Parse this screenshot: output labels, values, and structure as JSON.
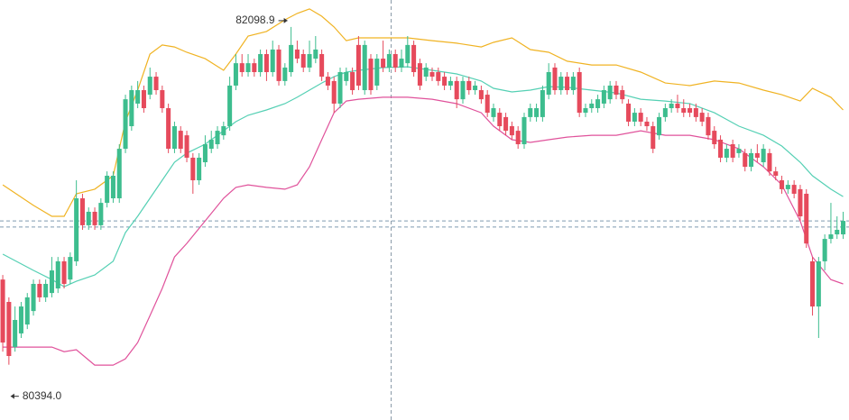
{
  "chart_data": {
    "type": "candlestick",
    "up_color": "#3dbd8e",
    "down_color": "#e64a5c",
    "xlim": [
      -0.45,
      137.95
    ],
    "ylim": [
      80115,
      82235
    ],
    "ohlc": [
      [
        80824,
        80847,
        80460,
        80506
      ],
      [
        80711,
        80734,
        80394.0,
        80438
      ],
      [
        80483,
        80688,
        80460,
        80620
      ],
      [
        80552,
        80711,
        80529,
        80688
      ],
      [
        80597,
        80756,
        80574,
        80734
      ],
      [
        80665,
        80824,
        80642,
        80802
      ],
      [
        80802,
        80824,
        80711,
        80734
      ],
      [
        80734,
        80824,
        80711,
        80802
      ],
      [
        80756,
        80938,
        80734,
        80870
      ],
      [
        80779,
        80938,
        80756,
        80916
      ],
      [
        80916,
        80938,
        80779,
        80802
      ],
      [
        80824,
        80961,
        80802,
        80938
      ],
      [
        80916,
        81325,
        80893,
        81234
      ],
      [
        81234,
        81257,
        81075,
        81098
      ],
      [
        81098,
        81188,
        81075,
        81166
      ],
      [
        81166,
        81188,
        81075,
        81098
      ],
      [
        81098,
        81234,
        81075,
        81211
      ],
      [
        81211,
        81370,
        81188,
        81348
      ],
      [
        81234,
        81370,
        81211,
        81348
      ],
      [
        81234,
        81507,
        81211,
        81484
      ],
      [
        81484,
        81757,
        81462,
        81734
      ],
      [
        81598,
        81803,
        81575,
        81780
      ],
      [
        81712,
        81826,
        81689,
        81780
      ],
      [
        81780,
        81803,
        81666,
        81689
      ],
      [
        81757,
        81894,
        81734,
        81848
      ],
      [
        81848,
        81871,
        81757,
        81780
      ],
      [
        81780,
        81803,
        81666,
        81689
      ],
      [
        81689,
        81712,
        81462,
        81484
      ],
      [
        81484,
        81621,
        81462,
        81598
      ],
      [
        81575,
        81598,
        81462,
        81484
      ],
      [
        81552,
        81575,
        81416,
        81439
      ],
      [
        81439,
        81462,
        81257,
        81325
      ],
      [
        81325,
        81462,
        81302,
        81439
      ],
      [
        81416,
        81552,
        81393,
        81507
      ],
      [
        81484,
        81575,
        81462,
        81530
      ],
      [
        81507,
        81598,
        81484,
        81575
      ],
      [
        81552,
        81621,
        81530,
        81598
      ],
      [
        81598,
        81848,
        81575,
        81803
      ],
      [
        81803,
        81962,
        81780,
        81916
      ],
      [
        81916,
        81962,
        81848,
        81871
      ],
      [
        81871,
        81962,
        81848,
        81916
      ],
      [
        81916,
        81939,
        81848,
        81871
      ],
      [
        81871,
        81985,
        81848,
        81962
      ],
      [
        81962,
        81985,
        81826,
        81871
      ],
      [
        81871,
        82030,
        81848,
        81985
      ],
      [
        81985,
        82008,
        81803,
        81826
      ],
      [
        81826,
        81916,
        81803,
        81894
      ],
      [
        81871,
        82098.9,
        81848,
        82008
      ],
      [
        81985,
        82030,
        81916,
        81939
      ],
      [
        81962,
        81985,
        81871,
        81894
      ],
      [
        81894,
        82030,
        81871,
        81962
      ],
      [
        81939,
        82053,
        81916,
        81985
      ],
      [
        81962,
        81985,
        81826,
        81848
      ],
      [
        81848,
        81871,
        81780,
        81803
      ],
      [
        81826,
        81848,
        81666,
        81712
      ],
      [
        81712,
        81894,
        81689,
        81871
      ],
      [
        81826,
        81894,
        81803,
        81871
      ],
      [
        81871,
        81894,
        81757,
        81780
      ],
      [
        82008,
        82053,
        81780,
        81803
      ],
      [
        81780,
        82030,
        81757,
        82008
      ],
      [
        81939,
        81962,
        81757,
        81780
      ],
      [
        81803,
        81962,
        81780,
        81939
      ],
      [
        81939,
        82030,
        81871,
        81894
      ],
      [
        81894,
        81985,
        81871,
        81962
      ],
      [
        81962,
        81985,
        81871,
        81894
      ],
      [
        81894,
        81985,
        81871,
        81939
      ],
      [
        81916,
        82053,
        81894,
        82008
      ],
      [
        82008,
        82030,
        81848,
        81871
      ],
      [
        81916,
        81939,
        81780,
        81803
      ],
      [
        81848,
        81916,
        81826,
        81894
      ],
      [
        81871,
        81894,
        81826,
        81848
      ],
      [
        81871,
        81894,
        81803,
        81826
      ],
      [
        81848,
        81871,
        81780,
        81803
      ],
      [
        81803,
        81848,
        81780,
        81826
      ],
      [
        81826,
        81848,
        81689,
        81734
      ],
      [
        81734,
        81848,
        81712,
        81826
      ],
      [
        81826,
        81848,
        81757,
        81780
      ],
      [
        81780,
        81826,
        81757,
        81803
      ],
      [
        81780,
        81803,
        81712,
        81734
      ],
      [
        81757,
        81780,
        81644,
        81666
      ],
      [
        81644,
        81712,
        81621,
        81689
      ],
      [
        81666,
        81689,
        81575,
        81598
      ],
      [
        81644,
        81666,
        81552,
        81575
      ],
      [
        81598,
        81621,
        81530,
        81552
      ],
      [
        81575,
        81598,
        81484,
        81507
      ],
      [
        81507,
        81666,
        81484,
        81644
      ],
      [
        81644,
        81712,
        81621,
        81689
      ],
      [
        81644,
        81712,
        81621,
        81689
      ],
      [
        81644,
        81803,
        81621,
        81780
      ],
      [
        81757,
        81916,
        81734,
        81871
      ],
      [
        81894,
        81916,
        81757,
        81780
      ],
      [
        81780,
        81871,
        81757,
        81848
      ],
      [
        81848,
        81871,
        81757,
        81780
      ],
      [
        81780,
        81871,
        81757,
        81848
      ],
      [
        81871,
        81894,
        81644,
        81666
      ],
      [
        81666,
        81712,
        81644,
        81689
      ],
      [
        81689,
        81734,
        81666,
        81712
      ],
      [
        81689,
        81757,
        81666,
        81734
      ],
      [
        81712,
        81803,
        81689,
        81780
      ],
      [
        81734,
        81826,
        81712,
        81803
      ],
      [
        81803,
        81826,
        81734,
        81757
      ],
      [
        81780,
        81803,
        81712,
        81734
      ],
      [
        81712,
        81734,
        81598,
        81621
      ],
      [
        81621,
        81689,
        81598,
        81666
      ],
      [
        81666,
        81689,
        81598,
        81621
      ],
      [
        81621,
        81644,
        81575,
        81598
      ],
      [
        81598,
        81621,
        81462,
        81484
      ],
      [
        81552,
        81666,
        81530,
        81644
      ],
      [
        81644,
        81712,
        81621,
        81689
      ],
      [
        81689,
        81734,
        81666,
        81712
      ],
      [
        81712,
        81757,
        81666,
        81689
      ],
      [
        81689,
        81734,
        81644,
        81666
      ],
      [
        81689,
        81712,
        81644,
        81666
      ],
      [
        81689,
        81712,
        81621,
        81644
      ],
      [
        81666,
        81689,
        81598,
        81621
      ],
      [
        81644,
        81666,
        81530,
        81552
      ],
      [
        81575,
        81598,
        81484,
        81507
      ],
      [
        81530,
        81552,
        81416,
        81439
      ],
      [
        81439,
        81507,
        81416,
        81484
      ],
      [
        81507,
        81530,
        81416,
        81439
      ],
      [
        81462,
        81507,
        81439,
        81484
      ],
      [
        81462,
        81484,
        81370,
        81393
      ],
      [
        81393,
        81484,
        81370,
        81462
      ],
      [
        81462,
        81507,
        81416,
        81439
      ],
      [
        81416,
        81507,
        81393,
        81484
      ],
      [
        81462,
        81484,
        81348,
        81370
      ],
      [
        81370,
        81393,
        81325,
        81348
      ],
      [
        81325,
        81348,
        81257,
        81280
      ],
      [
        81280,
        81325,
        81257,
        81302
      ],
      [
        81302,
        81325,
        81234,
        81257
      ],
      [
        81280,
        81302,
        81120,
        81143
      ],
      [
        81257,
        81280,
        80984,
        81006
      ],
      [
        80916,
        80938,
        80642,
        80688
      ],
      [
        80688,
        80938,
        80529,
        80916
      ],
      [
        80916,
        81052,
        80870,
        81029
      ],
      [
        81029,
        81211,
        81006,
        81052
      ],
      [
        81052,
        81143,
        81029,
        81075
      ],
      [
        81052,
        81166,
        81029,
        81120
      ]
    ],
    "band_x": [
      0,
      5,
      8,
      10,
      12,
      15,
      18,
      20,
      22,
      24,
      26,
      28,
      30,
      33,
      36,
      38,
      40,
      43,
      46,
      48,
      50,
      52,
      54,
      56,
      58,
      62,
      66,
      70,
      74,
      78,
      80,
      83,
      86,
      89,
      92,
      96,
      100,
      104,
      108,
      112,
      116,
      120,
      124,
      127,
      130,
      132,
      135,
      137
    ],
    "bands": [
      {
        "color": "#f0b323",
        "values": [
          81302,
          81198,
          81143,
          81143,
          81257,
          81280,
          81348,
          81621,
          81780,
          81962,
          82008,
          81998,
          81971,
          81939,
          81880,
          81962,
          82053,
          82076,
          82135,
          82167,
          82190,
          82153,
          82099,
          82030,
          82044,
          82044,
          82044,
          82030,
          82017,
          81998,
          82021,
          82044,
          81985,
          81971,
          81926,
          81907,
          81907,
          81871,
          81816,
          81803,
          81826,
          81816,
          81780,
          81757,
          81725,
          81789,
          81744,
          81680
        ]
      },
      {
        "color": "#55d0b4",
        "values": [
          80952,
          80870,
          80824,
          80788,
          80815,
          80847,
          80916,
          81061,
          81143,
          81234,
          81325,
          81416,
          81462,
          81507,
          81575,
          81621,
          81653,
          81680,
          81712,
          81744,
          81780,
          81816,
          81848,
          81871,
          81880,
          81894,
          81898,
          81880,
          81862,
          81826,
          81789,
          81771,
          81780,
          81798,
          81794,
          81780,
          81766,
          81734,
          81725,
          81712,
          81666,
          81598,
          81552,
          81498,
          81416,
          81348,
          81280,
          81243
        ]
      },
      {
        "color": "#e0529b",
        "values": [
          80483,
          80483,
          80483,
          80460,
          80470,
          80392,
          80392,
          80424,
          80506,
          80642,
          80779,
          80938,
          81006,
          81120,
          81234,
          81289,
          81302,
          81289,
          81280,
          81302,
          81393,
          81530,
          81666,
          81725,
          81734,
          81744,
          81744,
          81734,
          81712,
          81666,
          81598,
          81530,
          81516,
          81530,
          81543,
          81552,
          81552,
          81575,
          81552,
          81552,
          81530,
          81484,
          81393,
          81302,
          81120,
          80938,
          80824,
          80802
        ]
      }
    ],
    "price_lines": [
      81120,
      81089
    ],
    "annotations": [
      {
        "value": 82098.9,
        "label": "82098.9"
      },
      {
        "value": 80394.0,
        "label": "80394.0"
      }
    ]
  }
}
